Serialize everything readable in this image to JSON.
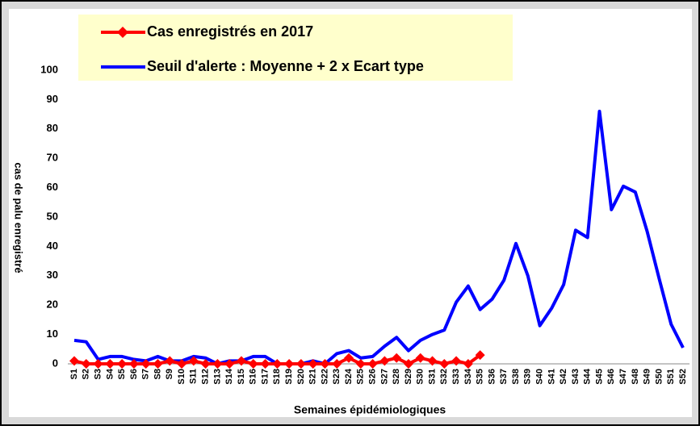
{
  "chart_data": {
    "type": "line",
    "x_label": "Semaines épidémiologiques",
    "y_label": "cas de palu enregistré",
    "categories": [
      "S1",
      "S2",
      "S3",
      "S4",
      "S5",
      "S6",
      "S7",
      "S8",
      "S9",
      "S10",
      "S11",
      "S12",
      "S13",
      "S14",
      "S15",
      "S16",
      "S17",
      "S18",
      "S19",
      "S20",
      "S21",
      "S22",
      "S23",
      "S24",
      "S25",
      "S26",
      "S27",
      "S28",
      "S29",
      "S30",
      "S31",
      "S32",
      "S33",
      "S34",
      "S35",
      "S36",
      "S37",
      "S38",
      "S39",
      "S40",
      "S41",
      "S42",
      "S43",
      "S44",
      "S45",
      "S46",
      "S47",
      "S48",
      "S49",
      "S50",
      "S51",
      "S52"
    ],
    "series": [
      {
        "name": "Cas enregistrés en 2017",
        "color": "#ff0000",
        "marker": "diamond",
        "values": [
          1,
          0,
          0,
          0,
          0,
          0,
          0,
          0,
          1,
          0,
          1,
          0,
          0,
          0,
          1,
          0,
          0,
          0,
          0,
          0,
          0,
          0,
          0,
          2,
          0,
          0,
          1,
          2,
          0,
          2,
          1,
          0,
          1,
          0,
          3,
          null,
          null,
          null,
          null,
          null,
          null,
          null,
          null,
          null,
          null,
          null,
          null,
          null,
          null,
          null,
          null,
          null
        ]
      },
      {
        "name": "Seuil d'alerte : Moyenne + 2 x Ecart type",
        "color": "#0000ff",
        "values": [
          8,
          7.5,
          1.5,
          2.5,
          2.5,
          1.5,
          1,
          2.5,
          1,
          1,
          2.5,
          2,
          0,
          1,
          1,
          2.5,
          2.5,
          0,
          0,
          0,
          1,
          0,
          3.5,
          4.5,
          2,
          2.5,
          6,
          9,
          4.5,
          8,
          10,
          11.5,
          21,
          26.5,
          18.5,
          22,
          28.5,
          41,
          30,
          13,
          19,
          27,
          45.5,
          43,
          86,
          52.5,
          60.5,
          58.5,
          45,
          29,
          13.5,
          5.5
        ]
      }
    ],
    "ylim": [
      0,
      100
    ],
    "yticks": [
      0,
      10,
      20,
      30,
      40,
      50,
      60,
      70,
      80,
      90,
      100
    ],
    "grid": false
  }
}
